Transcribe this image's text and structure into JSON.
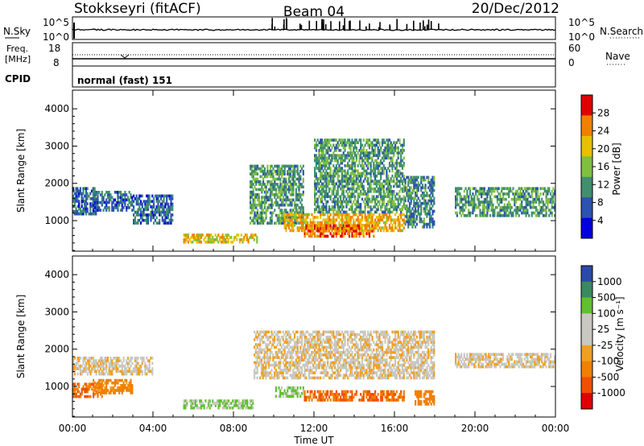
{
  "header": {
    "station": "Stokkseyri (fitACF)",
    "beam": "Beam 04",
    "date": "20/Dec/2012"
  },
  "status_panels": {
    "nsky_label": "N.Sky",
    "nsky_ticks": [
      "10^5",
      "10^0"
    ],
    "nsearch_label": "N.Search",
    "nsearch_ticks": [
      "10^5",
      "10^0"
    ],
    "freq_label_1": "Freq.",
    "freq_label_2": "[MHz]",
    "freq_ticks": [
      "18",
      "8"
    ],
    "nave_label": "Nave",
    "nave_ticks": [
      "60",
      "0"
    ],
    "cpid_label": "CPID",
    "cpid_text": "normal (fast) 151"
  },
  "chart_data": [
    {
      "type": "heatmap",
      "panel": "power",
      "ylabel": "Slant Range [km]",
      "yticks": [
        "4000",
        "3000",
        "2000",
        "1000"
      ],
      "ylim": [
        180,
        4500
      ],
      "colorbar_label": "Power [dB]",
      "colorbar_ticks": [
        "28",
        "24",
        "20",
        "16",
        "12",
        "8",
        "4"
      ],
      "colorbar_colors": [
        "#0000e0",
        "#2d52b0",
        "#3f8f70",
        "#80c040",
        "#e8c000",
        "#f08000",
        "#e00000"
      ],
      "regions": [
        {
          "t": [
            0.0,
            1.2
          ],
          "r": [
            1150,
            1900
          ],
          "value": 8
        },
        {
          "t": [
            1.0,
            3.0
          ],
          "r": [
            1250,
            1800
          ],
          "value": 8
        },
        {
          "t": [
            3.0,
            5.0
          ],
          "r": [
            900,
            1700
          ],
          "value": 8
        },
        {
          "t": [
            5.5,
            9.2
          ],
          "r": [
            400,
            650
          ],
          "value": 20
        },
        {
          "t": [
            8.8,
            11.5
          ],
          "r": [
            900,
            2500
          ],
          "value": 12
        },
        {
          "t": [
            10.5,
            16.5
          ],
          "r": [
            700,
            1200
          ],
          "value": 22
        },
        {
          "t": [
            12.0,
            16.5
          ],
          "r": [
            1200,
            3200
          ],
          "value": 12
        },
        {
          "t": [
            11.5,
            15.0
          ],
          "r": [
            550,
            900
          ],
          "value": 26
        },
        {
          "t": [
            16.5,
            18.0
          ],
          "r": [
            800,
            2200
          ],
          "value": 10
        },
        {
          "t": [
            19.0,
            24.0
          ],
          "r": [
            1100,
            1900
          ],
          "value": 12
        }
      ]
    },
    {
      "type": "heatmap",
      "panel": "velocity",
      "ylabel": "Slant Range [km]",
      "yticks": [
        "4000",
        "3000",
        "2000",
        "1000"
      ],
      "ylim": [
        180,
        4500
      ],
      "xlabel": "Time UT",
      "xticks": [
        "00:00",
        "04:00",
        "08:00",
        "12:00",
        "16:00",
        "20:00",
        "00:00"
      ],
      "xlim": [
        0,
        24
      ],
      "colorbar_label": "Velocity [m s⁻¹]",
      "colorbar_ticks": [
        "1000",
        "500",
        "100",
        "25",
        "-25",
        "-100",
        "-500",
        "-1000"
      ],
      "colorbar_colors": [
        "#e00000",
        "#f05000",
        "#f08000",
        "#f0a020",
        "#c8c8c0",
        "#c8c8c0",
        "#60c030",
        "#3a8a60",
        "#2a4aa8"
      ],
      "regions": [
        {
          "t": [
            0.0,
            1.5
          ],
          "r": [
            700,
            1100
          ],
          "value": -300
        },
        {
          "t": [
            0.0,
            4.0
          ],
          "r": [
            1300,
            1800
          ],
          "value": 0
        },
        {
          "t": [
            1.0,
            3.0
          ],
          "r": [
            800,
            1200
          ],
          "value": -150
        },
        {
          "t": [
            5.5,
            9.0
          ],
          "r": [
            400,
            650
          ],
          "value": 120
        },
        {
          "t": [
            9.0,
            18.0
          ],
          "r": [
            1200,
            2500
          ],
          "value": 0
        },
        {
          "t": [
            10.0,
            11.5
          ],
          "r": [
            700,
            1000
          ],
          "value": 120
        },
        {
          "t": [
            11.5,
            16.5
          ],
          "r": [
            600,
            900
          ],
          "value": -300
        },
        {
          "t": [
            19.0,
            24.0
          ],
          "r": [
            1500,
            1900
          ],
          "value": 0
        },
        {
          "t": [
            17.0,
            18.0
          ],
          "r": [
            500,
            900
          ],
          "value": -200
        }
      ]
    }
  ]
}
